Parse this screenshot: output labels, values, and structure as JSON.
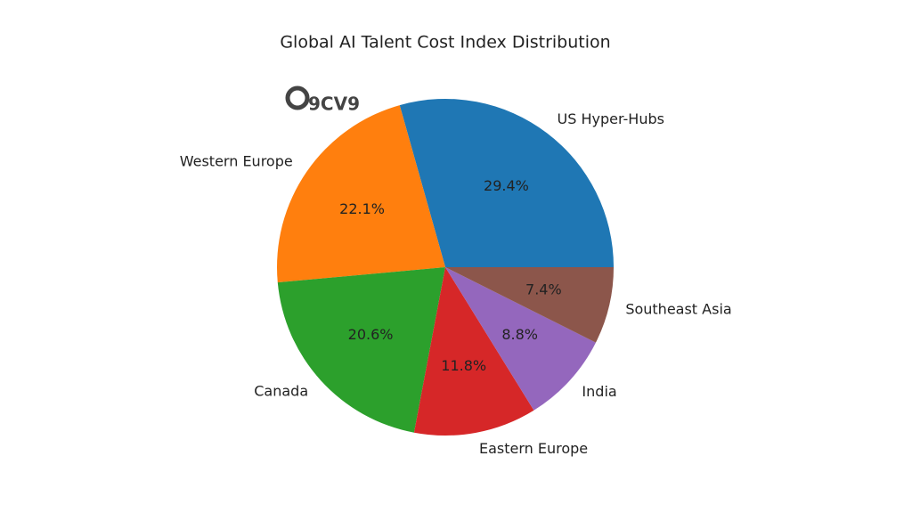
{
  "chart_data": {
    "type": "pie",
    "title": "Global AI Talent Cost Index Distribution",
    "watermark": "9CV9",
    "categories": [
      "US Hyper-Hubs",
      "Western Europe",
      "Canada",
      "Eastern Europe",
      "India",
      "Southeast Asia"
    ],
    "values": [
      29.4,
      22.1,
      20.6,
      11.8,
      8.8,
      7.4
    ],
    "value_labels": [
      "29.4%",
      "22.1%",
      "20.6%",
      "11.8%",
      "8.8%",
      "7.4%"
    ],
    "colors": [
      "#1f77b4",
      "#ff7f0e",
      "#2ca02c",
      "#d62728",
      "#9467bd",
      "#8c564b"
    ]
  }
}
